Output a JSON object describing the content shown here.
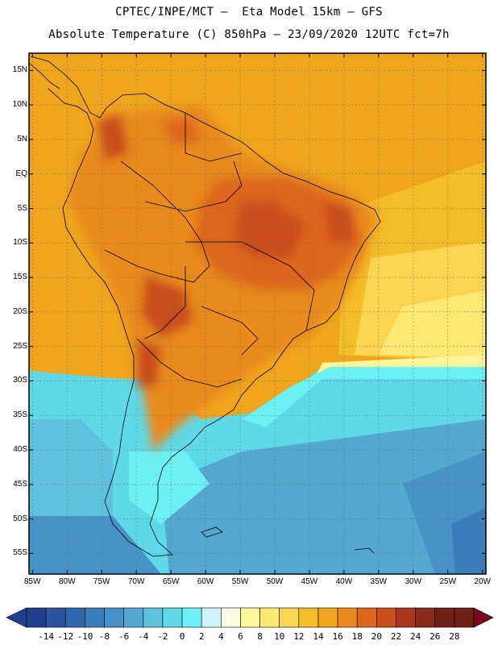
{
  "header": {
    "line1": "CPTEC/INPE/MCT –  Eta Model 15km – GFS",
    "line2": "Absolute Temperature (C) 850hPa – 23/09/2020 12UTC fct=7h"
  },
  "map": {
    "lat_labels": [
      "15N",
      "10N",
      "5N",
      "EQ",
      "5S",
      "10S",
      "15S",
      "20S",
      "25S",
      "30S",
      "35S",
      "40S",
      "45S",
      "50S",
      "55S"
    ],
    "lon_labels": [
      "85W",
      "80W",
      "75W",
      "70W",
      "65W",
      "60W",
      "55W",
      "50W",
      "45W",
      "40W",
      "35W",
      "30W",
      "25W",
      "20W"
    ],
    "lat_values": [
      15,
      10,
      5,
      0,
      -5,
      -10,
      -15,
      -20,
      -25,
      -30,
      -35,
      -40,
      -45,
      -50,
      -55
    ],
    "lon_values": [
      -85,
      -80,
      -75,
      -70,
      -65,
      -60,
      -55,
      -50,
      -45,
      -40,
      -35,
      -30,
      -25,
      -20
    ],
    "extent": {
      "lon_min": -85.5,
      "lon_max": -19.5,
      "lat_min": -58,
      "lat_max": 17.5
    }
  },
  "colorbar": {
    "labels": [
      "-14",
      "-12",
      "-10",
      "-8",
      "-6",
      "-4",
      "-2",
      "0",
      "2",
      "4",
      "6",
      "8",
      "10",
      "12",
      "14",
      "16",
      "18",
      "20",
      "22",
      "24",
      "26",
      "28"
    ],
    "colors": [
      "#1f3f8f",
      "#2a55a0",
      "#3068ad",
      "#3b7dbb",
      "#4792c7",
      "#54a8d2",
      "#5fc1dd",
      "#5fd8e8",
      "#6cf0f3",
      "#cdf6fc",
      "#fff9e6",
      "#fff59a",
      "#ffe873",
      "#fbd452",
      "#f4bd2a",
      "#efa51e",
      "#e98a1c",
      "#dd661e",
      "#c94e1a",
      "#a9381a",
      "#8a2a1b",
      "#6e2019",
      "#7a0a20"
    ]
  }
}
